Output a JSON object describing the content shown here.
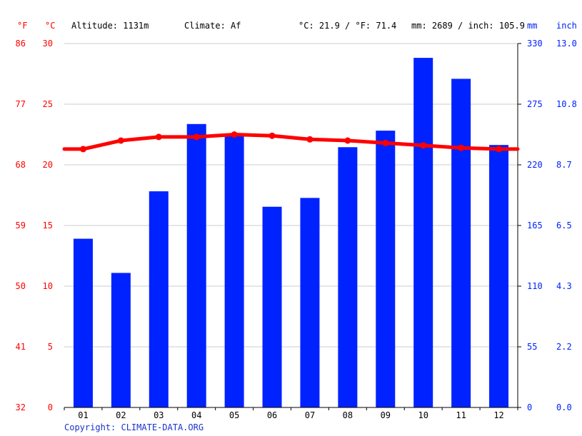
{
  "header": {
    "unit_f": "°F",
    "unit_c": "°C",
    "altitude": "Altitude: 1131m",
    "climate": "Climate: Af",
    "temp_summary": "°C: 21.9 / °F: 71.4",
    "precip_summary": "mm: 2689 / inch: 105.9",
    "unit_mm": "mm",
    "unit_inch": "inch"
  },
  "footer": {
    "copyright": "Copyright: CLIMATE-DATA.ORG"
  },
  "colors": {
    "temperature": "#ff0000",
    "precipitation": "#0022ff",
    "grid": "#cccccc",
    "axis": "#000000"
  },
  "chart_data": {
    "type": "bar",
    "categories": [
      "01",
      "02",
      "03",
      "04",
      "05",
      "06",
      "07",
      "08",
      "09",
      "10",
      "11",
      "12"
    ],
    "series": [
      {
        "values": [
          153,
          122,
          196,
          257,
          247,
          182,
          190,
          236,
          251,
          317,
          298,
          238
        ],
        "axis": "mm",
        "kind": "bar"
      },
      {
        "values": [
          21.3,
          22.0,
          22.3,
          22.3,
          22.5,
          22.4,
          22.1,
          22.0,
          21.8,
          21.6,
          21.4,
          21.3
        ],
        "axis": "°C",
        "kind": "line"
      }
    ],
    "axes": {
      "left_c": {
        "ticks": [
          "0",
          "5",
          "10",
          "15",
          "20",
          "25",
          "30"
        ],
        "range": [
          0,
          30
        ]
      },
      "left_f": {
        "ticks": [
          "32",
          "41",
          "50",
          "59",
          "68",
          "77",
          "86"
        ]
      },
      "right_mm": {
        "ticks": [
          "0",
          "55",
          "110",
          "165",
          "220",
          "275",
          "330"
        ],
        "range": [
          0,
          330
        ]
      },
      "right_inch": {
        "ticks": [
          "0.0",
          "2.2",
          "4.3",
          "6.5",
          "8.7",
          "10.8",
          "13.0"
        ]
      }
    },
    "grid": true
  }
}
